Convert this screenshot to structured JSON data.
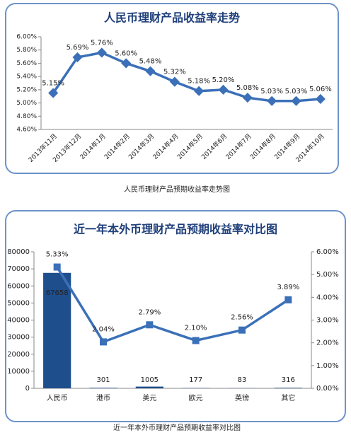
{
  "chart_data": [
    {
      "type": "line",
      "title": "人民币理财产品收益率走势",
      "caption": "人民币理财产品预期收益率走势图",
      "categories": [
        "2013年11月",
        "2013年12月",
        "2014年1月",
        "2014年2月",
        "2014年3月",
        "2014年4月",
        "2014年5月",
        "2014年6月",
        "2014年7月",
        "2014年8月",
        "2014年9月",
        "2014年10月"
      ],
      "series": [
        {
          "color": "#3b70b8",
          "values": [
            5.15,
            5.69,
            5.76,
            5.6,
            5.48,
            5.32,
            5.18,
            5.2,
            5.08,
            5.03,
            5.03,
            5.06
          ],
          "value_labels": [
            "5.15%",
            "5.69%",
            "5.76%",
            "5.60%",
            "5.48%",
            "5.32%",
            "5.18%",
            "5.20%",
            "5.08%",
            "5.03%",
            "5.03%",
            "5.06%"
          ]
        }
      ],
      "ylim": [
        4.6,
        6.0
      ],
      "yticks": [
        {
          "value": 4.6,
          "label": "4.60%"
        },
        {
          "value": 4.8,
          "label": "4.80%"
        },
        {
          "value": 5.0,
          "label": "5.00%"
        },
        {
          "value": 5.2,
          "label": "5.20%"
        },
        {
          "value": 5.4,
          "label": "5.40%"
        },
        {
          "value": 5.6,
          "label": "5.60%"
        },
        {
          "value": 5.8,
          "label": "5.80%"
        },
        {
          "value": 6.0,
          "label": "6.00%"
        }
      ]
    },
    {
      "type": "bar_line",
      "title": "近一年本外币理财产品预期收益率对比图",
      "caption": "近一年本外币理财产品预期收益率对比图",
      "categories": [
        "人民币",
        "港币",
        "美元",
        "欧元",
        "英镑",
        "其它"
      ],
      "series": [
        {
          "color": "#1f4e8c",
          "values": [
            67658,
            301,
            1005,
            177,
            83,
            316
          ]
        },
        {
          "color": "#3b70b8",
          "axis": "y2",
          "values": [
            5.33,
            2.04,
            2.79,
            2.1,
            2.56,
            3.89
          ],
          "value_labels": [
            "5.33%",
            "2.04%",
            "2.79%",
            "2.10%",
            "2.56%",
            "3.89%"
          ]
        }
      ],
      "ylim": [
        0,
        80000
      ],
      "yticks": [
        0,
        10000,
        20000,
        30000,
        40000,
        50000,
        60000,
        70000,
        80000
      ],
      "y2lim": [
        0,
        6
      ],
      "y2ticks": [
        {
          "value": 0,
          "label": "0.00%"
        },
        {
          "value": 1,
          "label": "1.00%"
        },
        {
          "value": 2,
          "label": "2.00%"
        },
        {
          "value": 3,
          "label": "3.00%"
        },
        {
          "value": 4,
          "label": "4.00%"
        },
        {
          "value": 5,
          "label": "5.00%"
        },
        {
          "value": 6,
          "label": "6.00%"
        }
      ]
    }
  ]
}
